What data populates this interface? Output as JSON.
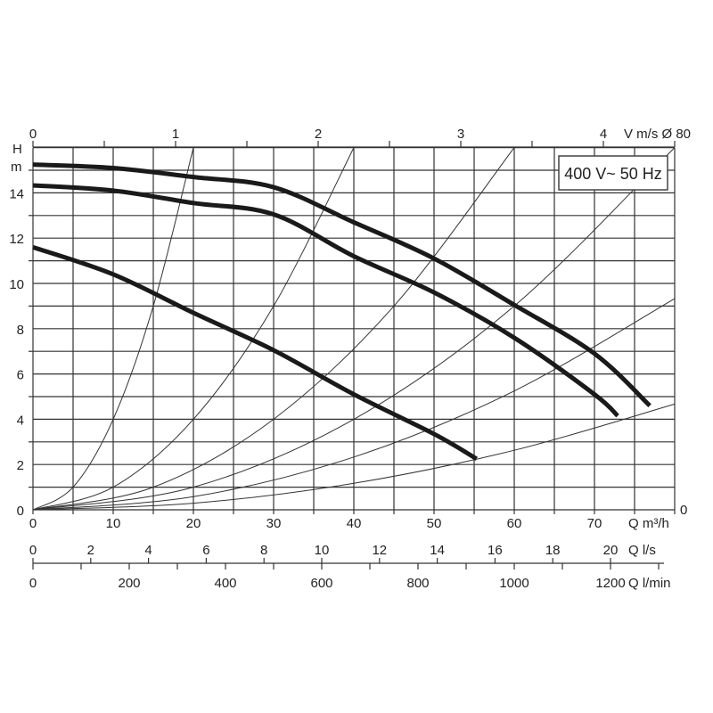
{
  "chart_data": {
    "type": "line",
    "label_box": "400 V~ 50 Hz",
    "y_axis": {
      "label_top": "H",
      "label_unit": "m",
      "range": [
        0,
        16
      ],
      "ticks": [
        0,
        2,
        4,
        6,
        8,
        10,
        12,
        14
      ],
      "grid_step": 1
    },
    "x_axis": {
      "label": "Q m³/h",
      "range": [
        0,
        80
      ],
      "ticks": [
        0,
        10,
        20,
        30,
        40,
        50,
        60,
        70
      ],
      "grid_step": 5,
      "right_end_label": "0"
    },
    "top_axis": {
      "label": "V m/s Ø 80",
      "ticks": [
        0,
        1,
        2,
        3,
        4
      ],
      "minor_step": 0.5
    },
    "ls_axis": {
      "label": "Q l/s",
      "ticks": [
        0,
        2,
        4,
        6,
        8,
        10,
        12,
        14,
        16,
        18,
        20
      ]
    },
    "lmin_axis": {
      "label": "Q l/min",
      "ticks": [
        0,
        200,
        400,
        600,
        800,
        1000,
        1200
      ],
      "minor_step": 100
    },
    "grid": true,
    "pump_curves": [
      {
        "points": [
          [
            0,
            15.25
          ],
          [
            10,
            15.1
          ],
          [
            20,
            14.7
          ],
          [
            30,
            14.25
          ],
          [
            40,
            12.7
          ],
          [
            50,
            11.1
          ],
          [
            60,
            9.05
          ],
          [
            70,
            6.9
          ],
          [
            76.9,
            4.6
          ]
        ]
      },
      {
        "points": [
          [
            0,
            14.33
          ],
          [
            10,
            14.1
          ],
          [
            20,
            13.55
          ],
          [
            30,
            13.05
          ],
          [
            40,
            11.2
          ],
          [
            50,
            9.6
          ],
          [
            60,
            7.6
          ],
          [
            70,
            5.1
          ],
          [
            72.9,
            4.15
          ]
        ]
      },
      {
        "points": [
          [
            0,
            11.6
          ],
          [
            10,
            10.4
          ],
          [
            20,
            8.7
          ],
          [
            30,
            7.05
          ],
          [
            40,
            5.1
          ],
          [
            50,
            3.35
          ],
          [
            55.3,
            2.25
          ]
        ]
      }
    ],
    "system_curves": [
      {
        "points": [
          [
            0,
            0
          ],
          [
            5,
            1
          ],
          [
            10,
            4
          ],
          [
            15,
            9
          ],
          [
            20,
            16
          ]
        ]
      },
      {
        "points": [
          [
            0,
            0
          ],
          [
            10,
            1
          ],
          [
            20,
            4
          ],
          [
            30,
            9
          ],
          [
            40,
            16
          ]
        ]
      },
      {
        "points": [
          [
            0,
            0
          ],
          [
            15,
            1
          ],
          [
            30,
            4
          ],
          [
            45,
            9
          ],
          [
            60,
            16
          ]
        ]
      },
      {
        "points": [
          [
            0,
            0
          ],
          [
            20,
            1
          ],
          [
            40,
            4
          ],
          [
            60,
            9
          ],
          [
            80,
            16
          ]
        ]
      },
      {
        "points": [
          [
            0,
            0
          ],
          [
            20,
            0.58
          ],
          [
            40,
            2.33
          ],
          [
            60,
            5.25
          ],
          [
            80,
            9.33
          ]
        ]
      },
      {
        "points": [
          [
            0,
            0
          ],
          [
            20,
            0.29
          ],
          [
            40,
            1.17
          ],
          [
            60,
            2.63
          ],
          [
            80,
            4.67
          ]
        ]
      }
    ]
  }
}
